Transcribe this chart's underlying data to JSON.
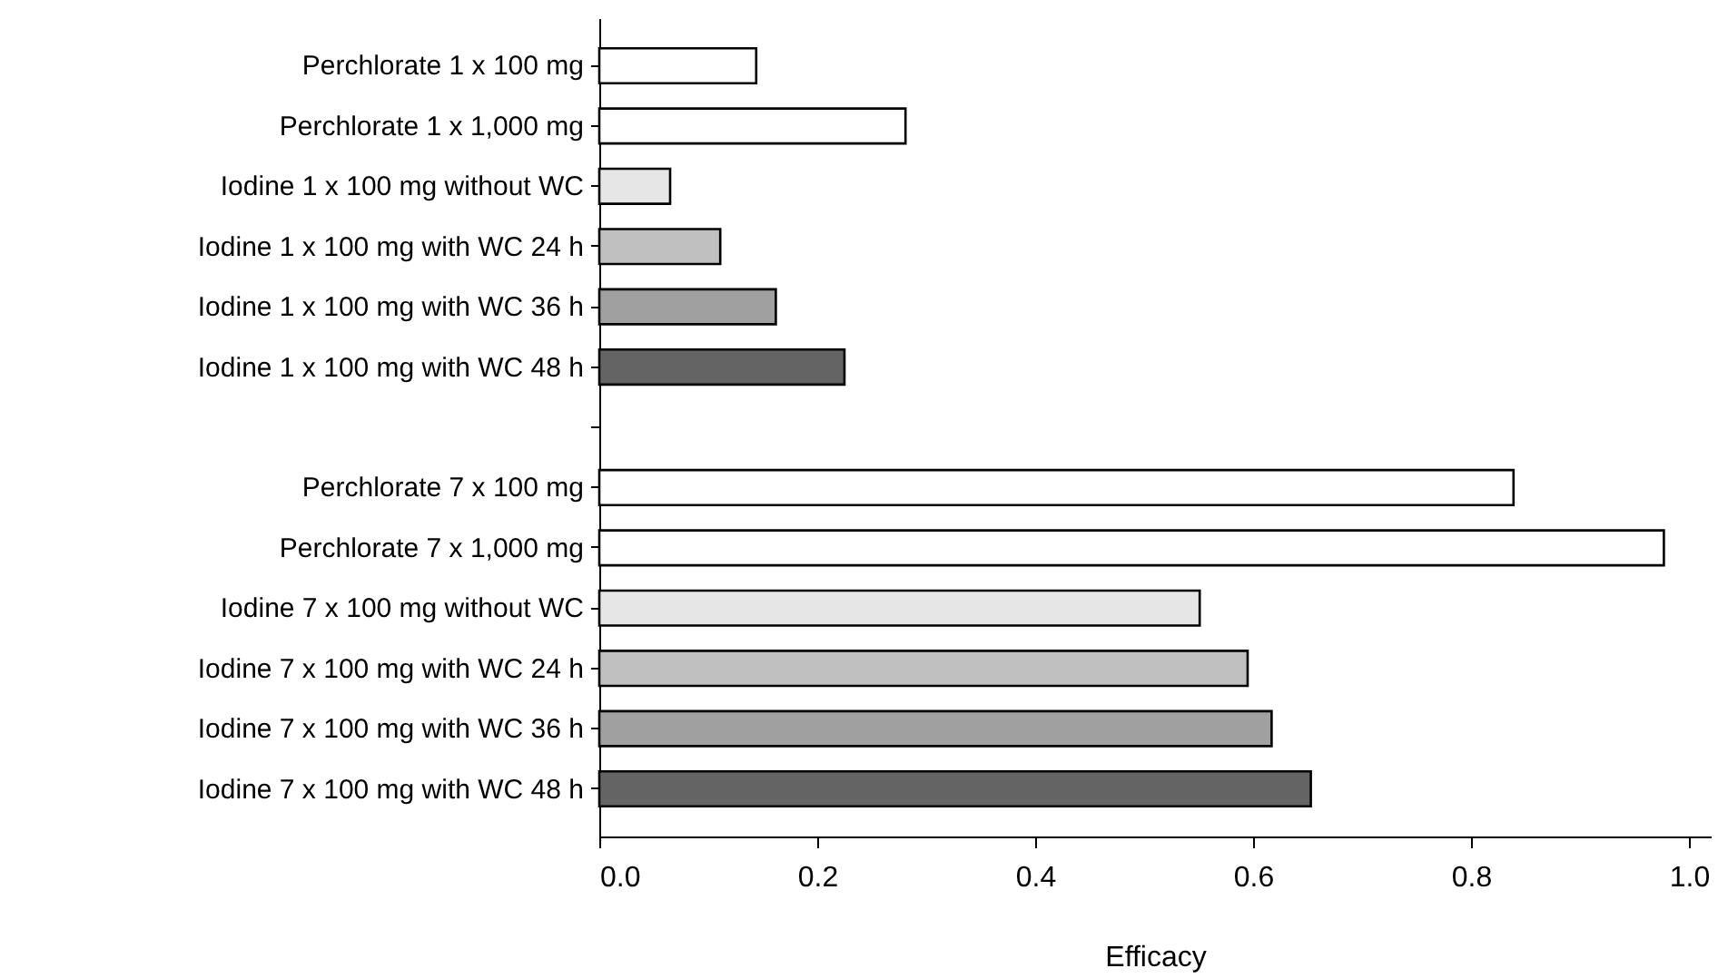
{
  "chart_data": {
    "type": "bar",
    "orientation": "horizontal",
    "xlabel": "Efficacy",
    "categories": [
      "Perchlorate 1 x 100 mg",
      "Perchlorate 1 x 1,000 mg",
      "Iodine 1 x 100 mg without WC",
      "Iodine 1 x 100 mg with WC 24 h",
      "Iodine 1 x 100 mg with WC 36 h",
      "Iodine 1 x 100 mg with WC 48 h",
      null,
      "Perchlorate 7 x 100 mg",
      "Perchlorate 7 x 1,000 mg",
      "Iodine 7 x 100 mg without WC",
      "Iodine 7 x 100 mg with WC 24 h",
      "Iodine 7 x  100 mg with WC 36 h",
      "Iodine 7 x 100 mg with WC 48 h"
    ],
    "values": [
      0.144,
      0.281,
      0.065,
      0.111,
      0.162,
      0.225,
      null,
      0.839,
      0.977,
      0.551,
      0.595,
      0.617,
      0.653
    ],
    "colors": [
      "#ffffff",
      "#ffffff",
      "#e6e6e6",
      "#c0c0c0",
      "#a0a0a0",
      "#646464",
      null,
      "#ffffff",
      "#ffffff",
      "#e6e6e6",
      "#c0c0c0",
      "#a0a0a0",
      "#646464"
    ],
    "xlim": [
      0,
      1.02
    ],
    "xticks": [
      {
        "value": 0,
        "label": "0.0"
      },
      {
        "value": 0.2,
        "label": "0.2"
      },
      {
        "value": 0.4,
        "label": "0.4"
      },
      {
        "value": 0.6,
        "label": "0.6"
      },
      {
        "value": 0.8,
        "label": "0.8"
      },
      {
        "value": 1,
        "label": "1.0"
      }
    ],
    "grid": false
  }
}
